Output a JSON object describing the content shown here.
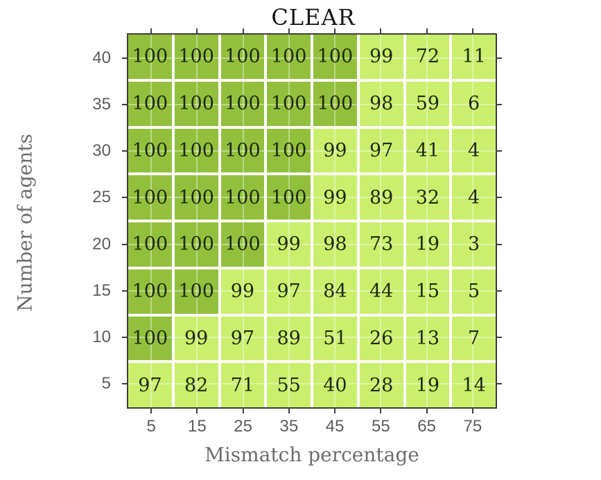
{
  "chart_data": {
    "type": "heatmap",
    "title": "CLEAR",
    "xlabel": "Mismatch percentage",
    "ylabel": "Number of agents",
    "x_categories": [
      "5",
      "15",
      "25",
      "35",
      "45",
      "55",
      "65",
      "75"
    ],
    "y_categories": [
      "40",
      "35",
      "30",
      "25",
      "20",
      "15",
      "10",
      "5"
    ],
    "values": [
      [
        100,
        100,
        100,
        100,
        100,
        99,
        72,
        11
      ],
      [
        100,
        100,
        100,
        100,
        100,
        98,
        59,
        6
      ],
      [
        100,
        100,
        100,
        100,
        99,
        97,
        41,
        4
      ],
      [
        100,
        100,
        100,
        100,
        99,
        89,
        32,
        4
      ],
      [
        100,
        100,
        100,
        99,
        98,
        73,
        19,
        3
      ],
      [
        100,
        100,
        99,
        97,
        84,
        44,
        15,
        5
      ],
      [
        100,
        99,
        97,
        89,
        51,
        26,
        13,
        7
      ],
      [
        97,
        82,
        71,
        55,
        40,
        28,
        19,
        14
      ]
    ],
    "colors": {
      "cell_high": "#92c03d",
      "cell_low": "#c9ef6d",
      "high_threshold": 100,
      "frame": "#3e3e3e",
      "cell_text": "#1f2a08",
      "tick_label": "#5c5c5c",
      "axis_label": "#6d6d6d"
    },
    "grid": true,
    "legend": "none",
    "ticks_on_all_sides": true
  }
}
